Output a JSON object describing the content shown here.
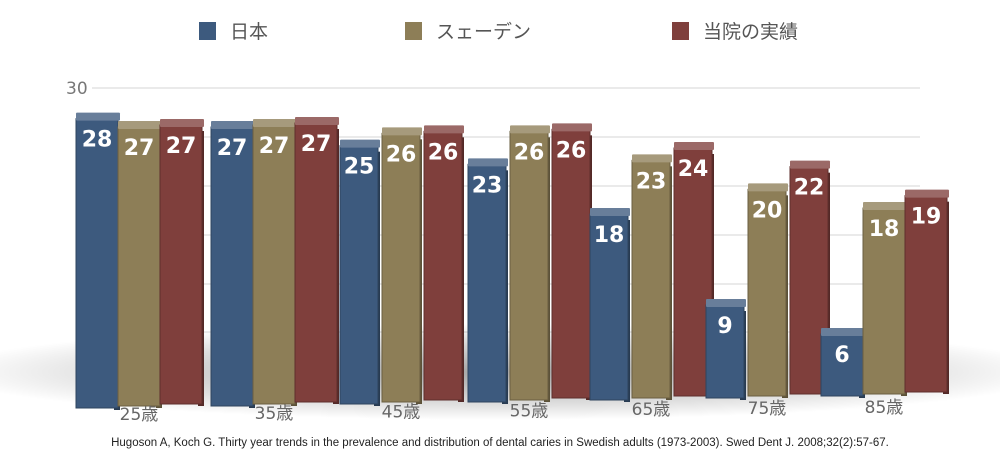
{
  "chart_data": {
    "type": "bar",
    "title": "",
    "xlabel": "",
    "ylabel": "",
    "ylim": [
      0,
      30
    ],
    "yticks": [
      30
    ],
    "grid": true,
    "legend": "top",
    "categories": [
      "25歳",
      "35歳",
      "45歳",
      "55歳",
      "65歳",
      "75歳",
      "85歳"
    ],
    "series": [
      {
        "name": "日本",
        "color": "#3d5a7e",
        "values": [
          28,
          27,
          25,
          23,
          18,
          9,
          6
        ]
      },
      {
        "name": "スェーデン",
        "color": "#8d7e57",
        "values": [
          27,
          27,
          26,
          26,
          23,
          20,
          18
        ]
      },
      {
        "name": "当院の実績",
        "color": "#7f3f3c",
        "values": [
          27,
          27,
          26,
          26,
          24,
          22,
          19
        ]
      }
    ]
  },
  "citation": "Hugoson A, Koch G. Thirty year trends in the prevalence and distribution of dental caries in Swedish adults (1973-2003). Swed Dent J. 2008;32(2):57-67."
}
